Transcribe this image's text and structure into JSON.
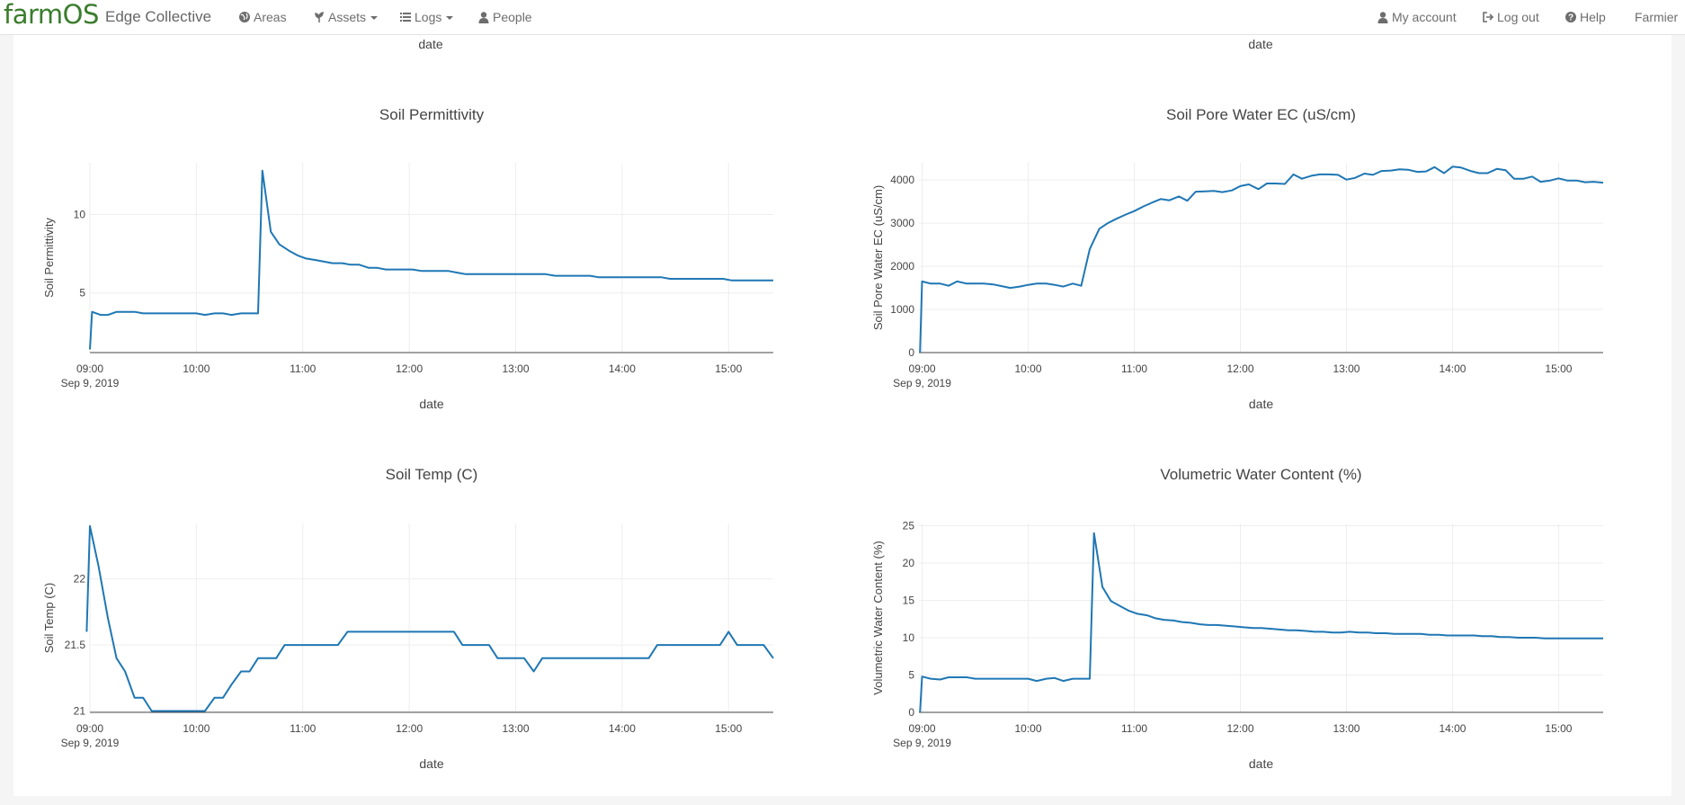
{
  "navbar": {
    "brand": "farmOS",
    "site_name": "Edge Collective",
    "areas": "Areas",
    "assets": "Assets",
    "logs": "Logs",
    "people": "People",
    "my_account": "My account",
    "log_out": "Log out",
    "help": "Help",
    "user": "Farmier"
  },
  "top_partial": {
    "left_xlabel": "date",
    "right_xlabel": "date"
  },
  "chart_data": [
    {
      "type": "line",
      "title": "Soil Permittivity",
      "xlabel": "date",
      "ylabel": "Soil Permittivity",
      "color": "#1f77b4",
      "x_range": [
        9.0,
        15.42
      ],
      "ylim": [
        1.2,
        13.3
      ],
      "x_ticks": [
        "09:00",
        "10:00",
        "11:00",
        "12:00",
        "13:00",
        "14:00",
        "15:00"
      ],
      "x_date_label": "Sep 9, 2019",
      "y_ticks": [
        5,
        10
      ],
      "y_tick_labels": [
        "5",
        "10"
      ],
      "x": [
        9.0,
        9.02,
        9.1,
        9.17,
        9.25,
        9.33,
        9.42,
        9.5,
        9.58,
        9.67,
        9.75,
        9.83,
        9.92,
        10.0,
        10.08,
        10.17,
        10.25,
        10.33,
        10.42,
        10.5,
        10.58,
        10.62,
        10.7,
        10.78,
        10.87,
        10.95,
        11.03,
        11.12,
        11.2,
        11.28,
        11.37,
        11.45,
        11.53,
        11.62,
        11.7,
        11.78,
        11.87,
        11.95,
        12.03,
        12.12,
        12.2,
        12.28,
        12.37,
        12.45,
        12.53,
        12.62,
        12.7,
        12.78,
        12.87,
        12.95,
        13.03,
        13.12,
        13.2,
        13.28,
        13.37,
        13.45,
        13.53,
        13.62,
        13.7,
        13.78,
        13.87,
        13.95,
        14.03,
        14.12,
        14.2,
        14.28,
        14.37,
        14.45,
        14.53,
        14.62,
        14.7,
        14.78,
        14.87,
        14.95,
        15.03,
        15.12,
        15.2,
        15.28,
        15.37,
        15.42
      ],
      "y": [
        1.4,
        3.8,
        3.6,
        3.6,
        3.8,
        3.8,
        3.8,
        3.7,
        3.7,
        3.7,
        3.7,
        3.7,
        3.7,
        3.7,
        3.6,
        3.7,
        3.7,
        3.6,
        3.7,
        3.7,
        3.7,
        12.8,
        8.9,
        8.1,
        7.7,
        7.4,
        7.2,
        7.1,
        7.0,
        6.9,
        6.9,
        6.8,
        6.8,
        6.6,
        6.6,
        6.5,
        6.5,
        6.5,
        6.5,
        6.4,
        6.4,
        6.4,
        6.4,
        6.3,
        6.2,
        6.2,
        6.2,
        6.2,
        6.2,
        6.2,
        6.2,
        6.2,
        6.2,
        6.2,
        6.1,
        6.1,
        6.1,
        6.1,
        6.1,
        6.0,
        6.0,
        6.0,
        6.0,
        6.0,
        6.0,
        6.0,
        6.0,
        5.9,
        5.9,
        5.9,
        5.9,
        5.9,
        5.9,
        5.9,
        5.8,
        5.8,
        5.8,
        5.8,
        5.8,
        5.8
      ]
    },
    {
      "type": "line",
      "title": "Soil Pore Water EC (uS/cm)",
      "xlabel": "date",
      "ylabel": "Soil Pore Water EC (uS/cm)",
      "color": "#1f77b4",
      "x_range": [
        8.97,
        15.42
      ],
      "ylim": [
        0,
        4400
      ],
      "x_ticks": [
        "09:00",
        "10:00",
        "11:00",
        "12:00",
        "13:00",
        "14:00",
        "15:00"
      ],
      "x_date_label": "Sep 9, 2019",
      "y_ticks": [
        0,
        1000,
        2000,
        3000,
        4000
      ],
      "y_tick_labels": [
        "0",
        "1000",
        "2000",
        "3000",
        "4000"
      ],
      "x": [
        8.98,
        9.0,
        9.08,
        9.17,
        9.25,
        9.33,
        9.42,
        9.5,
        9.58,
        9.67,
        9.75,
        9.83,
        9.92,
        10.0,
        10.08,
        10.17,
        10.25,
        10.33,
        10.42,
        10.5,
        10.58,
        10.67,
        10.75,
        10.83,
        10.92,
        11.0,
        11.08,
        11.17,
        11.25,
        11.33,
        11.42,
        11.5,
        11.58,
        11.67,
        11.75,
        11.83,
        11.92,
        12.0,
        12.08,
        12.17,
        12.25,
        12.33,
        12.42,
        12.5,
        12.58,
        12.67,
        12.75,
        12.83,
        12.92,
        13.0,
        13.08,
        13.17,
        13.25,
        13.33,
        13.42,
        13.5,
        13.58,
        13.67,
        13.75,
        13.83,
        13.92,
        14.0,
        14.08,
        14.17,
        14.25,
        14.33,
        14.42,
        14.5,
        14.58,
        14.67,
        14.75,
        14.83,
        14.92,
        15.0,
        15.08,
        15.17,
        15.25,
        15.33,
        15.42
      ],
      "y": [
        0,
        1650,
        1600,
        1600,
        1550,
        1650,
        1600,
        1600,
        1600,
        1580,
        1540,
        1500,
        1530,
        1570,
        1600,
        1600,
        1570,
        1530,
        1600,
        1550,
        2400,
        2870,
        3000,
        3100,
        3200,
        3280,
        3380,
        3480,
        3560,
        3530,
        3620,
        3520,
        3730,
        3740,
        3750,
        3720,
        3760,
        3860,
        3900,
        3790,
        3920,
        3920,
        3910,
        4130,
        4030,
        4100,
        4130,
        4130,
        4120,
        4010,
        4050,
        4150,
        4120,
        4210,
        4220,
        4250,
        4240,
        4190,
        4200,
        4300,
        4160,
        4310,
        4290,
        4210,
        4160,
        4160,
        4260,
        4230,
        4030,
        4030,
        4080,
        3960,
        3990,
        4040,
        3990,
        3990,
        3950,
        3960,
        3940
      ]
    },
    {
      "type": "line",
      "title": "Soil Temp (C)",
      "xlabel": "date",
      "ylabel": "Soil Temp (C)",
      "color": "#1f77b4",
      "x_range": [
        9.0,
        15.42
      ],
      "ylim": [
        20.99,
        22.42
      ],
      "x_ticks": [
        "09:00",
        "10:00",
        "11:00",
        "12:00",
        "13:00",
        "14:00",
        "15:00"
      ],
      "x_date_label": "Sep 9, 2019",
      "y_ticks": [
        21,
        21.5,
        22
      ],
      "y_tick_labels": [
        "21",
        "21.5",
        "22"
      ],
      "x": [
        8.97,
        9.0,
        9.08,
        9.17,
        9.25,
        9.33,
        9.42,
        9.5,
        9.58,
        9.67,
        9.75,
        9.83,
        9.92,
        10.0,
        10.08,
        10.17,
        10.25,
        10.33,
        10.42,
        10.5,
        10.58,
        10.67,
        10.75,
        10.83,
        10.92,
        11.0,
        11.08,
        11.17,
        11.25,
        11.33,
        11.42,
        11.5,
        11.58,
        11.67,
        11.75,
        11.83,
        11.92,
        12.0,
        12.08,
        12.17,
        12.25,
        12.33,
        12.42,
        12.5,
        12.58,
        12.67,
        12.75,
        12.83,
        12.92,
        13.0,
        13.08,
        13.17,
        13.25,
        13.33,
        13.42,
        13.5,
        13.58,
        13.67,
        13.75,
        13.83,
        13.92,
        14.0,
        14.08,
        14.17,
        14.25,
        14.33,
        14.42,
        14.5,
        14.58,
        14.67,
        14.75,
        14.83,
        14.92,
        15.0,
        15.08,
        15.17,
        15.25,
        15.33,
        15.42
      ],
      "y": [
        21.6,
        22.4,
        22.1,
        21.7,
        21.4,
        21.3,
        21.1,
        21.1,
        21.0,
        21.0,
        21.0,
        21.0,
        21.0,
        21.0,
        21.0,
        21.1,
        21.1,
        21.2,
        21.3,
        21.3,
        21.4,
        21.4,
        21.4,
        21.5,
        21.5,
        21.5,
        21.5,
        21.5,
        21.5,
        21.5,
        21.6,
        21.6,
        21.6,
        21.6,
        21.6,
        21.6,
        21.6,
        21.6,
        21.6,
        21.6,
        21.6,
        21.6,
        21.6,
        21.5,
        21.5,
        21.5,
        21.5,
        21.4,
        21.4,
        21.4,
        21.4,
        21.3,
        21.4,
        21.4,
        21.4,
        21.4,
        21.4,
        21.4,
        21.4,
        21.4,
        21.4,
        21.4,
        21.4,
        21.4,
        21.4,
        21.5,
        21.5,
        21.5,
        21.5,
        21.5,
        21.5,
        21.5,
        21.5,
        21.6,
        21.5,
        21.5,
        21.5,
        21.5,
        21.4
      ]
    },
    {
      "type": "line",
      "title": "Volumetric Water Content (%)",
      "xlabel": "date",
      "ylabel": "Volumetric Water Content (%)",
      "color": "#1f77b4",
      "x_range": [
        8.97,
        15.42
      ],
      "ylim": [
        0,
        25.3
      ],
      "x_ticks": [
        "09:00",
        "10:00",
        "11:00",
        "12:00",
        "13:00",
        "14:00",
        "15:00"
      ],
      "x_date_label": "Sep 9, 2019",
      "y_ticks": [
        0,
        5,
        10,
        15,
        20,
        25
      ],
      "y_tick_labels": [
        "0",
        "5",
        "10",
        "15",
        "20",
        "25"
      ],
      "x": [
        8.98,
        9.0,
        9.08,
        9.17,
        9.25,
        9.33,
        9.42,
        9.5,
        9.58,
        9.67,
        9.75,
        9.83,
        9.92,
        10.0,
        10.08,
        10.17,
        10.25,
        10.33,
        10.42,
        10.5,
        10.58,
        10.62,
        10.7,
        10.78,
        10.87,
        10.95,
        11.03,
        11.12,
        11.2,
        11.28,
        11.37,
        11.45,
        11.53,
        11.62,
        11.7,
        11.78,
        11.87,
        11.95,
        12.03,
        12.12,
        12.2,
        12.28,
        12.37,
        12.45,
        12.53,
        12.62,
        12.7,
        12.78,
        12.87,
        12.95,
        13.03,
        13.12,
        13.2,
        13.28,
        13.37,
        13.45,
        13.53,
        13.62,
        13.7,
        13.78,
        13.87,
        13.95,
        14.03,
        14.12,
        14.2,
        14.28,
        14.37,
        14.45,
        14.53,
        14.62,
        14.7,
        14.78,
        14.87,
        14.95,
        15.03,
        15.12,
        15.2,
        15.28,
        15.37,
        15.42
      ],
      "y": [
        0,
        4.8,
        4.5,
        4.4,
        4.7,
        4.7,
        4.7,
        4.5,
        4.5,
        4.5,
        4.5,
        4.5,
        4.5,
        4.5,
        4.2,
        4.5,
        4.6,
        4.2,
        4.5,
        4.5,
        4.5,
        24.0,
        16.8,
        14.9,
        14.2,
        13.6,
        13.2,
        13.0,
        12.6,
        12.4,
        12.3,
        12.1,
        12.0,
        11.8,
        11.7,
        11.7,
        11.6,
        11.5,
        11.4,
        11.3,
        11.3,
        11.2,
        11.1,
        11.0,
        11.0,
        10.9,
        10.8,
        10.8,
        10.7,
        10.7,
        10.8,
        10.7,
        10.7,
        10.6,
        10.6,
        10.5,
        10.5,
        10.5,
        10.5,
        10.4,
        10.4,
        10.3,
        10.3,
        10.3,
        10.3,
        10.2,
        10.2,
        10.1,
        10.1,
        10.0,
        10.0,
        10.0,
        9.9,
        9.9,
        9.9,
        9.9,
        9.9,
        9.9,
        9.9,
        9.9
      ]
    }
  ]
}
